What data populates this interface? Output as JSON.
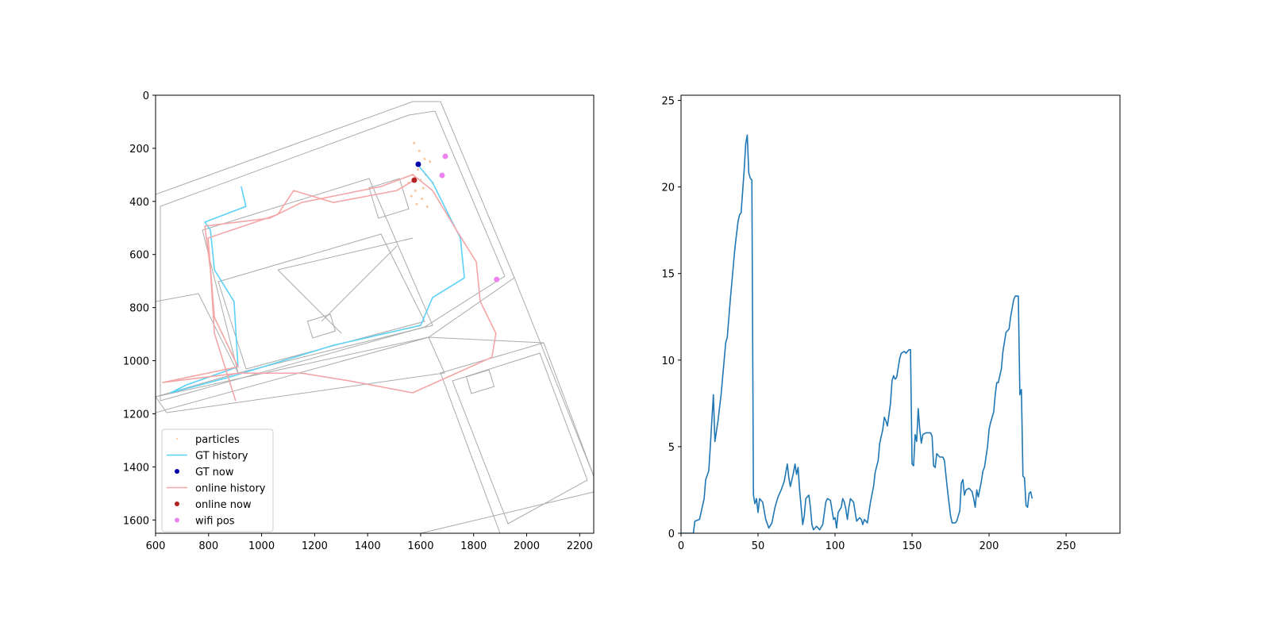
{
  "chart_data": [
    {
      "type": "trajectory",
      "xlim": [
        600,
        2253
      ],
      "ylim": [
        1650,
        0
      ],
      "xticks": [
        600,
        800,
        1000,
        1200,
        1400,
        1600,
        1800,
        2000,
        2200
      ],
      "yticks": [
        0,
        200,
        400,
        600,
        800,
        1000,
        1200,
        1400,
        1600
      ],
      "legend": "lower left",
      "series": [
        {
          "name": "particles",
          "kind": "scatter",
          "color": "#f9c49a",
          "x": [
            1555,
            1570,
            1580,
            1590,
            1600,
            1610,
            1620,
            1635,
            1645,
            1565,
            1585,
            1605,
            1625,
            1575,
            1595,
            1615
          ],
          "values": [
            330,
            300,
            360,
            280,
            320,
            350,
            300,
            250,
            330,
            380,
            410,
            390,
            420,
            180,
            210,
            240
          ]
        },
        {
          "name": "GT history",
          "kind": "line",
          "color": "#5bd1f7",
          "x": [
            923,
            941,
            786,
            807,
            822,
            896,
            911,
            717,
            657,
            881,
            1271,
            1600,
            1645,
            1765,
            1750,
            1705,
            1645,
            1600,
            1590
          ],
          "values": [
            344,
            419,
            478,
            508,
            658,
            777,
            1023,
            1091,
            1121,
            1061,
            942,
            867,
            762,
            688,
            538,
            449,
            329,
            275,
            262
          ]
        },
        {
          "name": "GT now",
          "kind": "scatter",
          "color": "#0000aa",
          "x": [
            1591
          ],
          "values": [
            260
          ]
        },
        {
          "name": "online history",
          "kind": "line",
          "color": "#f4a6a6",
          "x": [
            902,
            822,
            807,
            786,
            1031,
            1151,
            1301,
            1450,
            1570,
            1645,
            1735,
            1810,
            1825,
            1884,
            1869,
            1735,
            1570,
            1331,
            1151,
            911,
            627,
            911,
            822,
            798,
            1061,
            1121,
            1271,
            1510,
            1576
          ],
          "values": [
            1151,
            897,
            658,
            493,
            463,
            404,
            374,
            344,
            299,
            359,
            508,
            628,
            777,
            897,
            987,
            1047,
            1121,
            1076,
            1047,
            1047,
            1082,
            1023,
            837,
            538,
            449,
            359,
            404,
            359,
            320
          ]
        },
        {
          "name": "online now",
          "kind": "scatter",
          "color": "#b22222",
          "x": [
            1576
          ],
          "values": [
            320
          ]
        },
        {
          "name": "wifi pos",
          "kind": "scatter",
          "color": "#ee82ee",
          "x": [
            1693,
            1681,
            1887
          ],
          "values": [
            230,
            302,
            694
          ]
        }
      ]
    },
    {
      "type": "line",
      "color": "#1f77b4",
      "xlim": [
        0,
        285
      ],
      "ylim": [
        0,
        25.3
      ],
      "xticks": [
        0,
        50,
        100,
        150,
        200,
        250
      ],
      "yticks": [
        0,
        5,
        10,
        15,
        20,
        25
      ],
      "x": [
        0,
        8,
        9,
        12,
        13,
        15,
        16,
        18,
        19,
        21,
        22,
        24,
        26,
        28,
        29,
        30,
        32,
        34,
        35,
        37,
        38,
        39,
        41,
        42,
        43,
        44,
        45,
        46,
        47,
        48,
        49,
        50,
        51,
        53,
        55,
        57,
        59,
        61,
        63,
        65,
        67,
        69,
        70,
        71,
        73,
        74,
        75,
        76,
        77,
        78,
        79,
        80,
        81,
        83,
        84,
        85,
        86,
        88,
        90,
        92,
        94,
        95,
        97,
        99,
        100,
        101,
        102,
        104,
        105,
        106,
        107,
        108,
        109,
        110,
        112,
        114,
        116,
        117,
        118,
        119,
        121,
        123,
        125,
        126,
        128,
        129,
        131,
        132,
        133,
        134,
        136,
        137,
        138,
        139,
        140,
        142,
        143,
        145,
        146,
        148,
        149,
        150,
        151,
        152,
        153,
        154,
        155,
        156,
        157,
        159,
        162,
        163,
        164,
        165,
        166,
        168,
        170,
        171,
        173,
        175,
        176,
        178,
        179,
        180,
        181,
        182,
        183,
        184,
        185,
        187,
        189,
        190,
        191,
        192,
        193,
        195,
        196,
        197,
        199,
        200,
        201,
        203,
        204,
        205,
        206,
        208,
        209,
        211,
        212,
        213,
        214,
        215,
        216,
        217,
        219,
        220,
        221,
        222,
        223,
        224,
        225,
        226,
        227,
        228
      ],
      "values": [
        0,
        0,
        0.7,
        0.8,
        1.2,
        2.0,
        3.1,
        3.6,
        5.0,
        8.0,
        5.3,
        6.5,
        8.0,
        10.0,
        11.0,
        11.3,
        13.5,
        15.5,
        16.5,
        18.0,
        18.4,
        18.5,
        21.0,
        22.5,
        23.0,
        20.8,
        20.5,
        20.4,
        2.2,
        1.7,
        2.0,
        1.2,
        2.0,
        1.8,
        0.8,
        0.3,
        0.6,
        1.5,
        2.1,
        2.5,
        3.0,
        4.0,
        3.2,
        2.7,
        3.5,
        4.0,
        3.4,
        3.8,
        2.5,
        1.5,
        0.5,
        1.0,
        2.0,
        2.2,
        1.5,
        0.5,
        0.2,
        0.4,
        0.2,
        0.5,
        1.8,
        2.0,
        1.9,
        0.8,
        0.9,
        0.3,
        1.2,
        1.5,
        2.0,
        1.8,
        1.4,
        0.8,
        1.5,
        2.0,
        1.8,
        0.7,
        0.9,
        0.8,
        0.5,
        0.8,
        0.6,
        1.8,
        2.7,
        3.5,
        4.2,
        5.2,
        6.0,
        6.7,
        6.5,
        6.2,
        7.5,
        8.8,
        9.1,
        8.9,
        9.0,
        10.1,
        10.4,
        10.5,
        10.4,
        10.6,
        10.6,
        4.0,
        3.9,
        5.7,
        5.3,
        7.2,
        6.0,
        5.2,
        5.7,
        5.8,
        5.8,
        5.6,
        3.9,
        3.8,
        4.6,
        4.4,
        4.4,
        4.2,
        2.5,
        1.0,
        0.6,
        0.6,
        0.7,
        1.0,
        1.3,
        2.9,
        3.1,
        2.2,
        2.5,
        2.6,
        2.4,
        2.0,
        1.5,
        2.5,
        2.1,
        3.0,
        3.6,
        3.8,
        5.0,
        6.0,
        6.4,
        7.0,
        8.0,
        8.7,
        8.7,
        9.5,
        10.5,
        11.6,
        11.7,
        11.8,
        12.5,
        13.0,
        13.5,
        13.7,
        13.7,
        8.0,
        8.3,
        3.3,
        3.2,
        1.6,
        1.5,
        2.3,
        2.4,
        2.0
      ]
    }
  ]
}
